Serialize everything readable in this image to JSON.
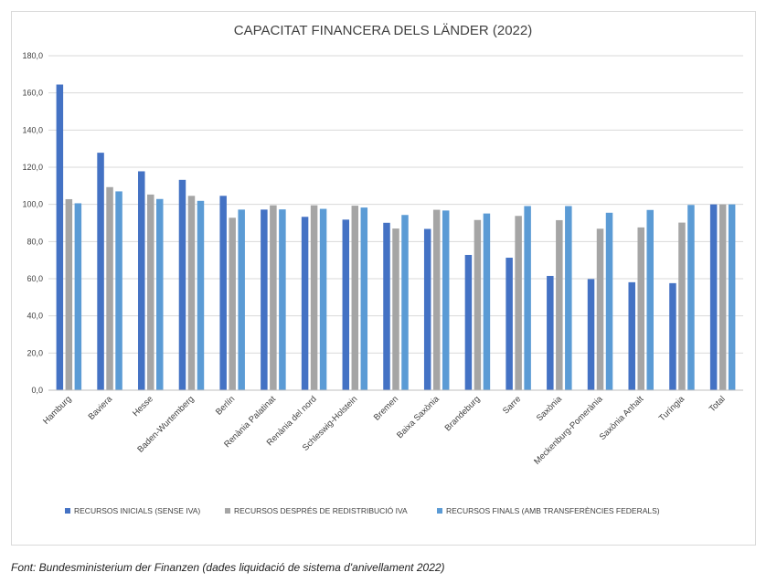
{
  "chart_data": {
    "type": "bar",
    "title": "CAPACITAT FINANCERA DELS LÄNDER (2022)",
    "xlabel": "",
    "ylabel": "",
    "ylim": [
      0,
      180
    ],
    "yticks": [
      "0,0",
      "20,0",
      "40,0",
      "60,0",
      "80,0",
      "100,0",
      "120,0",
      "140,0",
      "160,0",
      "180,0"
    ],
    "grid": true,
    "legend_position": "bottom",
    "categories": [
      "Hamburg",
      "Baviera",
      "Hesse",
      "Baden-Wurtemberg",
      "Berlín",
      "Renània Palatinat",
      "Renània del nord",
      "Schleswig-Holstein",
      "Bremen",
      "Baixa Saxònia",
      "Brandeburg",
      "Sarre",
      "Saxònia",
      "Meckenburg-Pomerània",
      "Saxònia Anhalt",
      "Turíngia",
      "Total"
    ],
    "series": [
      {
        "name": "RECURSOS INICIALS (SENSE IVA)",
        "color": "#4472c4",
        "values": [
          164.5,
          127.8,
          117.8,
          113.2,
          104.6,
          97.2,
          93.3,
          91.8,
          90.1,
          86.8,
          72.8,
          71.3,
          61.5,
          59.8,
          58.1,
          57.6,
          100.0
        ]
      },
      {
        "name": "RECURSOS DESPRÉS DE REDISTRIBUCIÓ IVA",
        "color": "#a5a5a5",
        "values": [
          102.8,
          109.3,
          105.3,
          104.6,
          92.8,
          99.5,
          99.5,
          99.3,
          87.0,
          97.1,
          91.6,
          93.8,
          91.5,
          86.9,
          87.6,
          90.2,
          100.0
        ]
      },
      {
        "name": "RECURSOS FINALS (AMB TRANSFERÈNCIES FEDERALS)",
        "color": "#5b9bd5",
        "values": [
          100.6,
          107.0,
          102.9,
          101.9,
          97.2,
          97.3,
          97.6,
          98.3,
          94.3,
          96.7,
          95.1,
          99.1,
          99.1,
          95.5,
          97.0,
          99.7,
          100.0
        ]
      }
    ]
  },
  "source_note": "Font: Bundesministerium  der Finanzen (dades liquidació de sistema d'anivellament  2022)"
}
